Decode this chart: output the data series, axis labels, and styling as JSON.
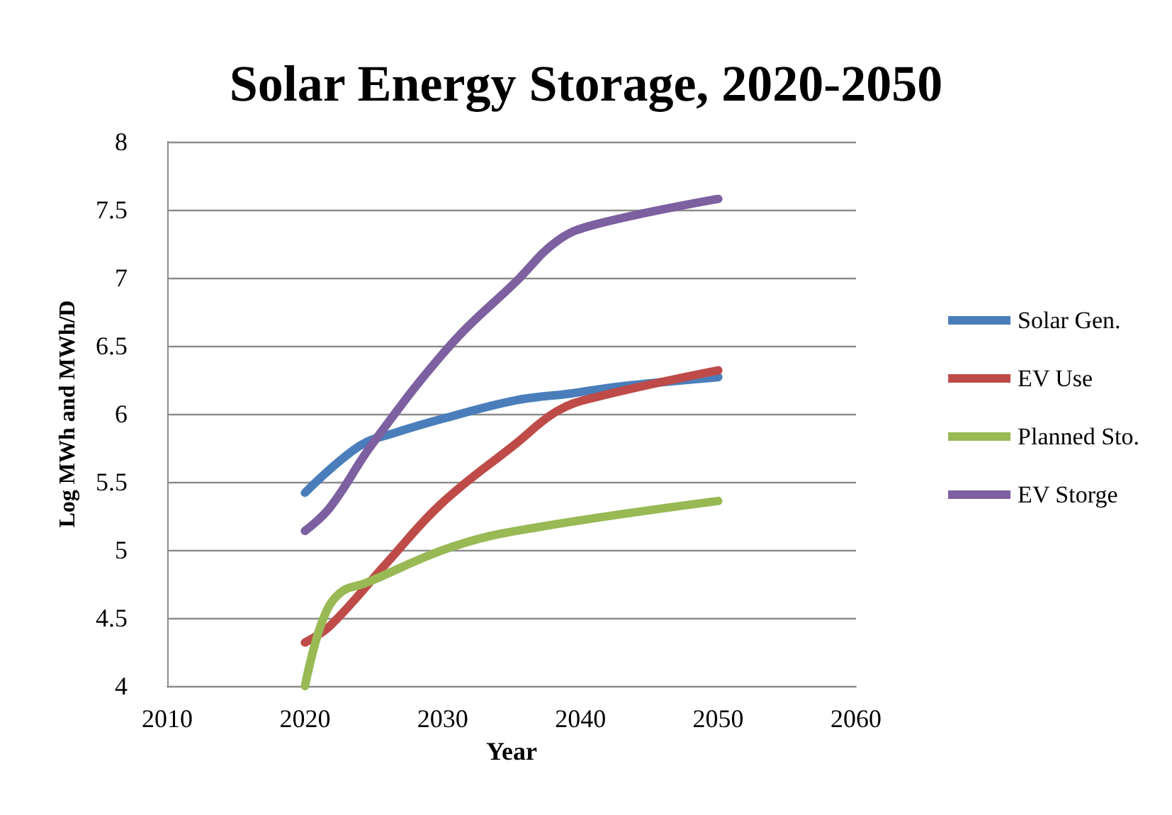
{
  "chart_data": {
    "type": "line",
    "title": "Solar Energy Storage, 2020-2050",
    "xlabel": "Year",
    "ylabel": "Log MWh and MWh/D",
    "xlim": [
      2010,
      2060
    ],
    "xticks": [
      2010,
      2020,
      2030,
      2040,
      2050,
      2060
    ],
    "ylim": [
      4,
      8
    ],
    "yticks": [
      4,
      4.5,
      5,
      5.5,
      6,
      6.5,
      7,
      7.5,
      8
    ],
    "grid": "y",
    "legend": "right",
    "marker": "none",
    "line_style": "solid",
    "series": [
      {
        "name": "Solar Gen.",
        "color": "#4a7ebb",
        "x": [
          2020,
          2023.9,
          2026.5,
          2030.2,
          2035.3,
          2039.3,
          2042.7,
          2050
        ],
        "values": [
          5.42,
          5.76,
          5.86,
          5.97,
          6.1,
          6.15,
          6.2,
          6.27
        ]
      },
      {
        "name": "EV Use",
        "color": "#be4b48",
        "x": [
          2020,
          2021.8,
          2025.9,
          2029.9,
          2035.3,
          2038.3,
          2041,
          2050
        ],
        "values": [
          4.32,
          4.44,
          4.9,
          5.34,
          5.78,
          6.02,
          6.12,
          6.32
        ]
      },
      {
        "name": "Planned Sto.",
        "color": "#98b954",
        "x": [
          2020,
          2021.2,
          2022.5,
          2024.5,
          2030.6,
          2035.9,
          2050
        ],
        "values": [
          4.0,
          4.46,
          4.68,
          4.76,
          5.02,
          5.15,
          5.36
        ]
      },
      {
        "name": "EV Storge",
        "color": "#7d60a0",
        "x": [
          2020,
          2021.8,
          2024.9,
          2030.6,
          2035.3,
          2038.3,
          2041,
          2050
        ],
        "values": [
          5.14,
          5.31,
          5.78,
          6.51,
          6.97,
          7.27,
          7.39,
          7.58
        ]
      }
    ]
  }
}
